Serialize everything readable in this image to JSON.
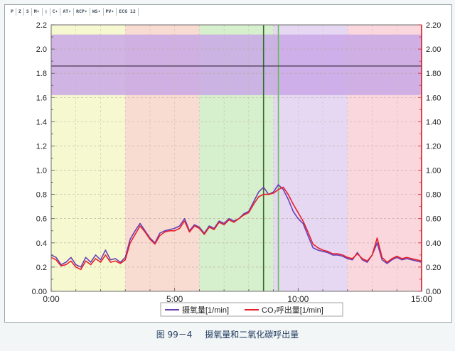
{
  "toolbar": {
    "items": [
      "P",
      "Z",
      "S",
      "M▾",
      "▯",
      "C▾",
      "AT▾",
      "RCP▾",
      "WS▾",
      "PV▾",
      "ECG 12"
    ]
  },
  "figure": {
    "label": "图 99－4",
    "title": "摄氧量和二氧化碳呼出量"
  },
  "colors": {
    "series_vo2": "#6a3fb5",
    "series_vco2": "#e8202a",
    "band_top": "#c9a8e6",
    "zone1": "#f6f8cf",
    "zone2": "#f8dcd2",
    "zone3": "#d6efcc",
    "zone4": "#e6d8f3",
    "zone5": "#f9d7dc",
    "marker_dark": "#2f6a2a",
    "marker_light": "#5cc44a",
    "hline": "#3a2a40",
    "right_axis": "#d21e22"
  },
  "chart_data": {
    "type": "line",
    "xlabel": "",
    "ylabel": "",
    "x_ticks": [
      "0:00",
      "5:00",
      "10:00",
      "15:00"
    ],
    "x_tick_values": [
      0,
      5,
      10,
      15
    ],
    "y_ticks_left": [
      "0.00",
      "0.2",
      "0.4",
      "0.6",
      "0.8",
      "1.0",
      "1.2",
      "1.4",
      "1.6",
      "1.8",
      "2.0",
      "2.2"
    ],
    "y_ticks_right": [
      "0.00",
      "0.20",
      "0.40",
      "0.60",
      "0.80",
      "1.00",
      "1.20",
      "1.40",
      "1.60",
      "1.80",
      "2.00",
      "2.20"
    ],
    "xlim": [
      0,
      15
    ],
    "ylim": [
      0,
      2.2
    ],
    "grid": true,
    "legend_position": "bottom-center",
    "zones": [
      {
        "from": 0,
        "to": 3.0,
        "color_key": "zone1"
      },
      {
        "from": 3.0,
        "to": 6.0,
        "color_key": "zone2"
      },
      {
        "from": 6.0,
        "to": 9.0,
        "color_key": "zone3"
      },
      {
        "from": 9.0,
        "to": 12.0,
        "color_key": "zone4"
      },
      {
        "from": 12.0,
        "to": 15.0,
        "color_key": "zone5"
      }
    ],
    "top_band": {
      "from": 1.62,
      "to": 2.12
    },
    "horizontal_line": 1.86,
    "vertical_markers": [
      {
        "x": 8.6,
        "color_key": "marker_dark"
      },
      {
        "x": 9.2,
        "color_key": "marker_light"
      }
    ],
    "series": [
      {
        "name": "摄氧量[1/min]",
        "color_key": "series_vo2",
        "x": [
          0.0,
          0.2,
          0.4,
          0.6,
          0.8,
          1.0,
          1.2,
          1.4,
          1.6,
          1.8,
          2.0,
          2.2,
          2.4,
          2.6,
          2.8,
          3.0,
          3.2,
          3.4,
          3.6,
          3.8,
          4.0,
          4.2,
          4.4,
          4.6,
          4.8,
          5.0,
          5.2,
          5.4,
          5.6,
          5.8,
          6.0,
          6.2,
          6.4,
          6.6,
          6.8,
          7.0,
          7.2,
          7.4,
          7.6,
          7.8,
          8.0,
          8.2,
          8.4,
          8.6,
          8.8,
          9.0,
          9.2,
          9.4,
          9.6,
          9.8,
          10.0,
          10.2,
          10.4,
          10.6,
          10.8,
          11.0,
          11.2,
          11.4,
          11.6,
          11.8,
          12.0,
          12.2,
          12.4,
          12.6,
          12.8,
          13.0,
          13.2,
          13.4,
          13.6,
          13.8,
          14.0,
          14.2,
          14.4,
          14.6,
          14.8,
          15.0
        ],
        "values": [
          0.3,
          0.28,
          0.22,
          0.24,
          0.28,
          0.22,
          0.2,
          0.28,
          0.24,
          0.3,
          0.26,
          0.34,
          0.26,
          0.27,
          0.24,
          0.28,
          0.43,
          0.5,
          0.56,
          0.5,
          0.44,
          0.4,
          0.48,
          0.5,
          0.51,
          0.52,
          0.54,
          0.6,
          0.5,
          0.55,
          0.53,
          0.48,
          0.54,
          0.52,
          0.58,
          0.56,
          0.6,
          0.58,
          0.6,
          0.64,
          0.66,
          0.74,
          0.82,
          0.86,
          0.8,
          0.82,
          0.88,
          0.84,
          0.76,
          0.66,
          0.6,
          0.56,
          0.46,
          0.36,
          0.34,
          0.33,
          0.32,
          0.3,
          0.3,
          0.29,
          0.27,
          0.26,
          0.32,
          0.26,
          0.24,
          0.3,
          0.4,
          0.26,
          0.23,
          0.26,
          0.28,
          0.26,
          0.27,
          0.26,
          0.25,
          0.24
        ]
      },
      {
        "name": "CO₂呼出量[1/min]",
        "color_key": "series_vco2",
        "x": [
          0.0,
          0.2,
          0.4,
          0.6,
          0.8,
          1.0,
          1.2,
          1.4,
          1.6,
          1.8,
          2.0,
          2.2,
          2.4,
          2.6,
          2.8,
          3.0,
          3.2,
          3.4,
          3.6,
          3.8,
          4.0,
          4.2,
          4.4,
          4.6,
          4.8,
          5.0,
          5.2,
          5.4,
          5.6,
          5.8,
          6.0,
          6.2,
          6.4,
          6.6,
          6.8,
          7.0,
          7.2,
          7.4,
          7.6,
          7.8,
          8.0,
          8.2,
          8.4,
          8.6,
          8.8,
          9.0,
          9.2,
          9.4,
          9.6,
          9.8,
          10.0,
          10.2,
          10.4,
          10.6,
          10.8,
          11.0,
          11.2,
          11.4,
          11.6,
          11.8,
          12.0,
          12.2,
          12.4,
          12.6,
          12.8,
          13.0,
          13.2,
          13.4,
          13.6,
          13.8,
          14.0,
          14.2,
          14.4,
          14.6,
          14.8,
          15.0
        ],
        "values": [
          0.28,
          0.26,
          0.21,
          0.22,
          0.25,
          0.2,
          0.18,
          0.25,
          0.22,
          0.27,
          0.24,
          0.3,
          0.24,
          0.25,
          0.23,
          0.26,
          0.4,
          0.47,
          0.54,
          0.49,
          0.43,
          0.39,
          0.46,
          0.49,
          0.5,
          0.5,
          0.52,
          0.58,
          0.49,
          0.54,
          0.52,
          0.47,
          0.53,
          0.51,
          0.57,
          0.55,
          0.59,
          0.57,
          0.6,
          0.63,
          0.65,
          0.72,
          0.78,
          0.8,
          0.8,
          0.81,
          0.84,
          0.86,
          0.8,
          0.72,
          0.65,
          0.58,
          0.49,
          0.39,
          0.36,
          0.34,
          0.33,
          0.31,
          0.31,
          0.3,
          0.28,
          0.27,
          0.31,
          0.27,
          0.25,
          0.3,
          0.44,
          0.28,
          0.24,
          0.27,
          0.29,
          0.27,
          0.28,
          0.27,
          0.26,
          0.25
        ]
      }
    ]
  }
}
